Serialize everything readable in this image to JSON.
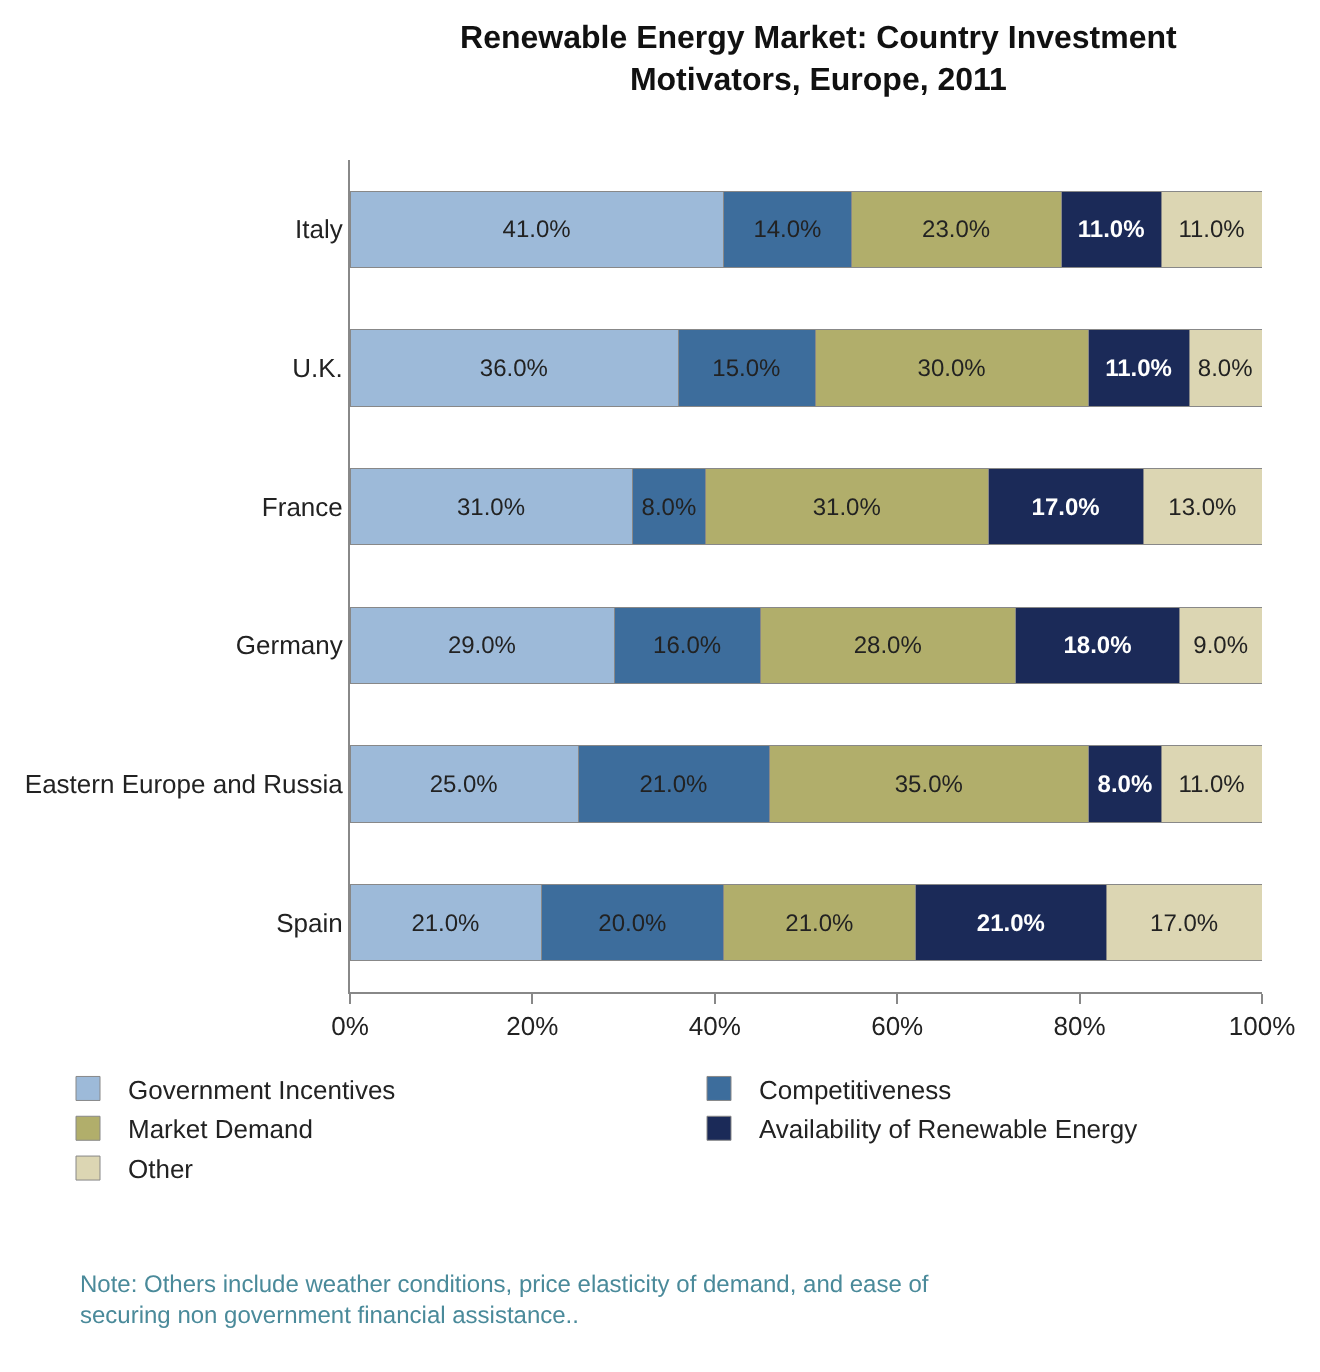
{
  "chart_data": {
    "type": "bar",
    "orientation": "horizontal",
    "stacked": true,
    "title": "Renewable Energy Market: Country Investment Motivators, Europe, 2011",
    "categories": [
      "Italy",
      "U.K.",
      "France",
      "Germany",
      "Eastern Europe and Russia",
      "Spain"
    ],
    "series": [
      {
        "name": "Government Incentives",
        "color": "#9dbad9",
        "values": [
          41,
          36,
          31,
          29,
          25,
          21
        ],
        "value_labels": [
          "41.0%",
          "36.0%",
          "31.0%",
          "29.0%",
          "25.0%",
          "21.0%"
        ]
      },
      {
        "name": "Competitiveness",
        "color": "#3d6d9c",
        "values": [
          14,
          15,
          8,
          16,
          21,
          20
        ],
        "value_labels": [
          "14.0%",
          "15.0%",
          "8.0%",
          "16.0%",
          "21.0%",
          "20.0%"
        ]
      },
      {
        "name": "Market Demand",
        "color": "#b1ae6b",
        "values": [
          23,
          30,
          31,
          28,
          35,
          21
        ],
        "value_labels": [
          "23.0%",
          "30.0%",
          "31.0%",
          "28.0%",
          "35.0%",
          "21.0%"
        ]
      },
      {
        "name": "Availability of Renewable Energy",
        "color": "#1b2a58",
        "values": [
          11,
          11,
          17,
          18,
          8,
          21
        ],
        "value_labels": [
          "11.0%",
          "11.0%",
          "17.0%",
          "18.0%",
          "8.0%",
          "21.0%"
        ]
      },
      {
        "name": "Other",
        "color": "#dcd6b3",
        "values": [
          11,
          8,
          13,
          9,
          11,
          17
        ],
        "value_labels": [
          "11.0%",
          "8.0%",
          "13.0%",
          "9.0%",
          "11.0%",
          "17.0%"
        ]
      }
    ],
    "xlim": [
      0,
      100
    ],
    "xticks": [
      {
        "value": 0,
        "label": "0%"
      },
      {
        "value": 20,
        "label": "20%"
      },
      {
        "value": 40,
        "label": "40%"
      },
      {
        "value": 60,
        "label": "60%"
      },
      {
        "value": 80,
        "label": "80%"
      },
      {
        "value": 100,
        "label": "100%"
      }
    ],
    "legend": "bottom",
    "annotations": [
      "Note: Others include weather conditions, price elasticity of demand, and ease of securing non government financial assistance.."
    ]
  }
}
